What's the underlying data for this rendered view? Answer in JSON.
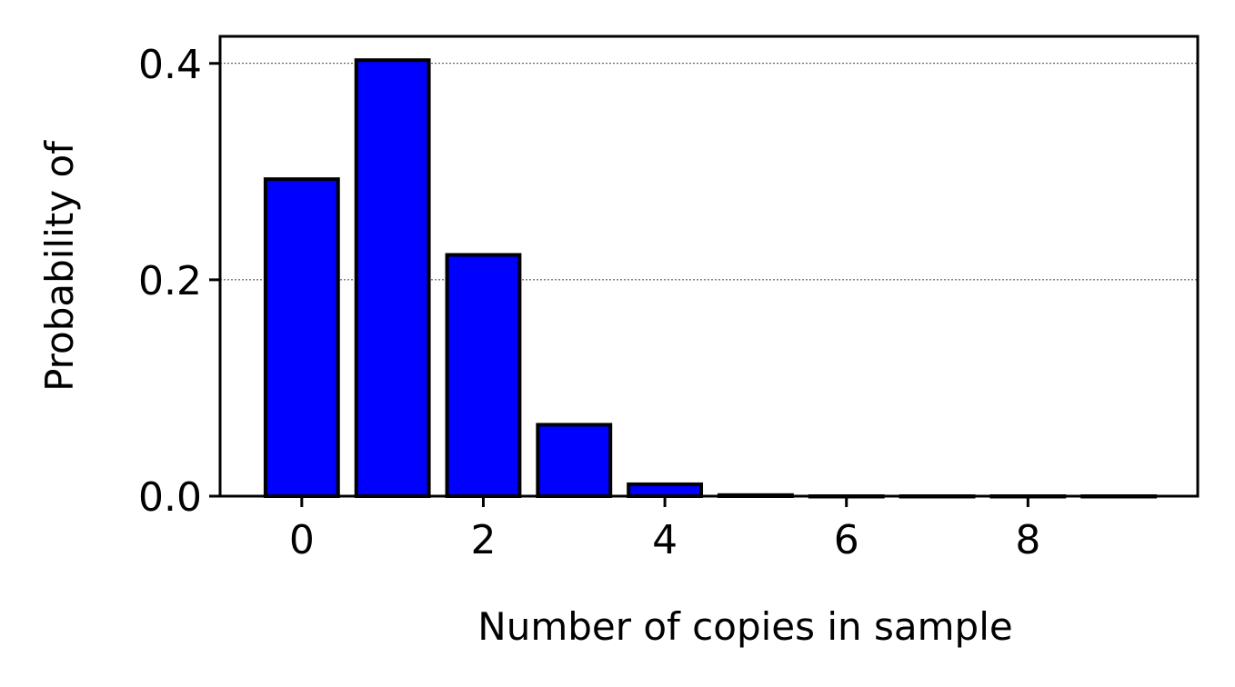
{
  "chart_data": {
    "type": "bar",
    "categories": [
      0,
      1,
      2,
      3,
      4,
      5,
      6,
      7,
      8,
      9
    ],
    "values": [
      0.293,
      0.403,
      0.223,
      0.066,
      0.011,
      0.001,
      0.0,
      0.0,
      0.0,
      0.0
    ],
    "xlabel": "Number of copies in sample",
    "ylabel": "Probability of",
    "xlim": [
      -0.9,
      9.87
    ],
    "ylim": [
      0,
      0.425
    ],
    "xticks": [
      0,
      2,
      4,
      6,
      8
    ],
    "xtick_labels": [
      "0",
      "2",
      "4",
      "6",
      "8"
    ],
    "yticks": [
      0.0,
      0.2,
      0.4
    ],
    "ytick_labels": [
      "0.0",
      "0.2",
      "0.4"
    ],
    "grid": "horizontal dotted",
    "colors": {
      "bar_fill": "#0000ff",
      "bar_edge": "#000000"
    }
  }
}
